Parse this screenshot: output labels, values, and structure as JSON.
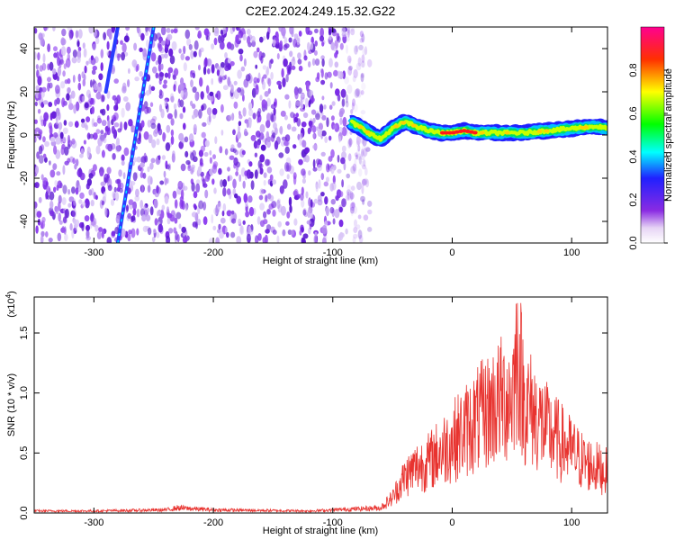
{
  "title": "C2E2.2024.249.15.32.G22",
  "colorbar": {
    "label": "Normalized spectral amplitude",
    "ticks": [
      "0.0",
      "0.2",
      "0.4",
      "0.6",
      "0.8"
    ]
  },
  "chart_data": [
    {
      "type": "heatmap",
      "panel": "top",
      "xlabel": "Height of straight line (km)",
      "ylabel": "Frequency (Hz)",
      "xlim": [
        -350,
        130
      ],
      "ylim": [
        -50,
        50
      ],
      "xticks": [
        -300,
        -200,
        -100,
        0,
        100
      ],
      "yticks": [
        -40,
        -20,
        0,
        20,
        40
      ],
      "xtick_labels": [
        "-300",
        "-200",
        "-100",
        "0",
        "100"
      ],
      "ytick_labels": [
        "-40",
        "-20",
        "0",
        "20",
        "40"
      ],
      "colorscale": "rainbow",
      "noise_region_x": [
        -350,
        -75
      ],
      "signal_trace": {
        "x": [
          -85,
          -75,
          -70,
          -60,
          -50,
          -40,
          -30,
          -20,
          -10,
          0,
          10,
          20,
          40,
          60,
          80,
          100,
          120,
          130
        ],
        "y": [
          6,
          3,
          1,
          -2,
          3,
          6,
          4,
          2,
          1,
          1,
          2,
          1,
          1,
          1,
          2,
          3,
          4,
          3
        ],
        "peak_x": [
          -10,
          20
        ]
      },
      "diagonal_lines": [
        {
          "x": [
            -280,
            -250
          ],
          "y": [
            -50,
            50
          ]
        },
        {
          "x": [
            -290,
            -280
          ],
          "y": [
            20,
            50
          ]
        }
      ]
    },
    {
      "type": "line",
      "panel": "bottom",
      "xlabel": "Height of straight line (km)",
      "ylabel": "SNR (10 * v/v)",
      "multiplier": "(x10",
      "multiplier_exp": "4",
      "multiplier_close": ")",
      "color": "#e8332f",
      "xlim": [
        -350,
        130
      ],
      "ylim": [
        0,
        1.8
      ],
      "xticks": [
        -300,
        -200,
        -100,
        0,
        100
      ],
      "yticks": [
        0.0,
        0.5,
        1.0,
        1.5
      ],
      "xtick_labels": [
        "-300",
        "-200",
        "-100",
        "0",
        "100"
      ],
      "ytick_labels": [
        "0.0",
        "0.5",
        "1.0",
        "1.5"
      ],
      "envelope": {
        "x": [
          -350,
          -300,
          -240,
          -230,
          -200,
          -120,
          -60,
          -50,
          -40,
          -30,
          -20,
          -10,
          0,
          10,
          20,
          30,
          40,
          50,
          55,
          60,
          70,
          80,
          90,
          100,
          110,
          120,
          130
        ],
        "y": [
          0.02,
          0.02,
          0.03,
          0.05,
          0.03,
          0.02,
          0.05,
          0.15,
          0.35,
          0.45,
          0.5,
          0.6,
          0.7,
          0.8,
          0.9,
          1.0,
          1.1,
          1.15,
          1.6,
          1.1,
          0.95,
          0.8,
          0.7,
          0.6,
          0.5,
          0.45,
          0.4
        ]
      }
    }
  ]
}
